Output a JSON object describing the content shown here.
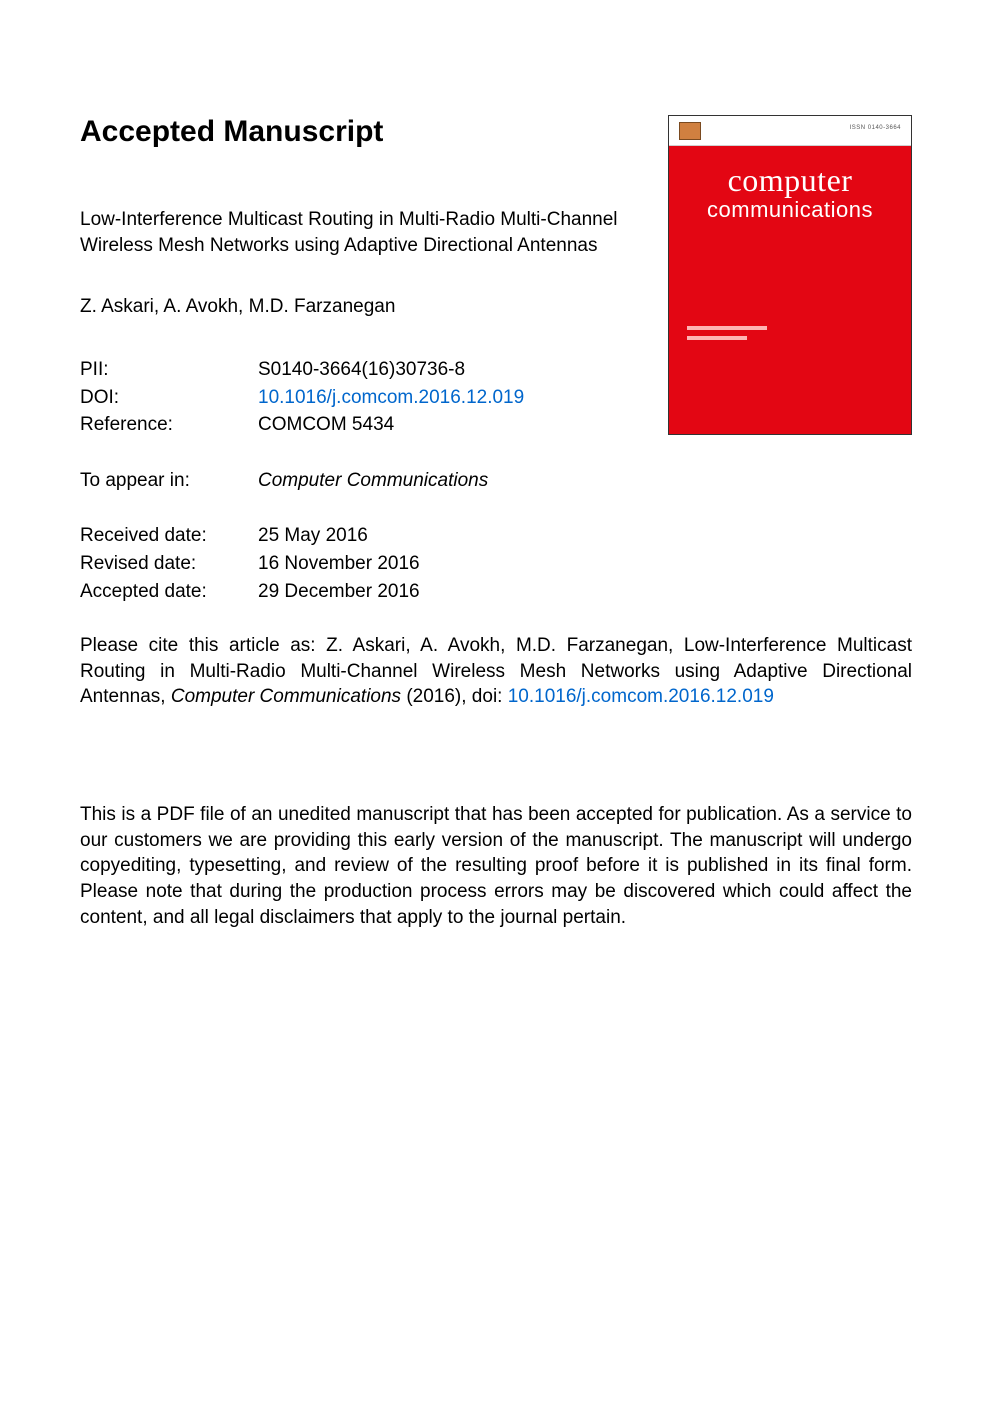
{
  "heading": "Accepted Manuscript",
  "article": {
    "title": "Low-Interference Multicast Routing in Multi-Radio Multi-Channel Wireless Mesh Networks using Adaptive Directional Antennas",
    "authors": "Z. Askari, A. Avokh, M.D. Farzanegan"
  },
  "meta": {
    "pii_label": "PII:",
    "pii": "S0140-3664(16)30736-8",
    "doi_label": "DOI:",
    "doi": "10.1016/j.comcom.2016.12.019",
    "ref_label": "Reference:",
    "ref": "COMCOM 5434",
    "appear_label": "To appear in:",
    "journal": "Computer Communications",
    "received_label": "Received date:",
    "received": "25 May 2016",
    "revised_label": "Revised date:",
    "revised": "16 November 2016",
    "accepted_label": "Accepted date:",
    "accepted": "29 December 2016"
  },
  "citation": {
    "prefix": "Please cite this article as: Z. Askari, A. Avokh, M.D. Farzanegan, Low-Interference Multicast Routing in Multi-Radio Multi-Channel Wireless Mesh Networks using Adaptive Directional Antennas, ",
    "journal": "Computer Communications",
    "year_doi_prefix": " (2016), doi: ",
    "doi": "10.1016/j.comcom.2016.12.019"
  },
  "disclaimer": "This is a PDF file of an unedited manuscript that has been accepted for publication. As a service to our customers we are providing this early version of the manuscript. The manuscript will undergo copyediting, typesetting, and review of the resulting proof before it is published in its final form. Please note that during the production process errors may be discovered which could affect the content, and all legal disclaimers that apply to the journal pertain.",
  "cover": {
    "issn": "ISSN 0140-3664",
    "title1": "computer",
    "title2": "communications",
    "brand_color": "#e30613",
    "text_color": "#ffffff"
  }
}
